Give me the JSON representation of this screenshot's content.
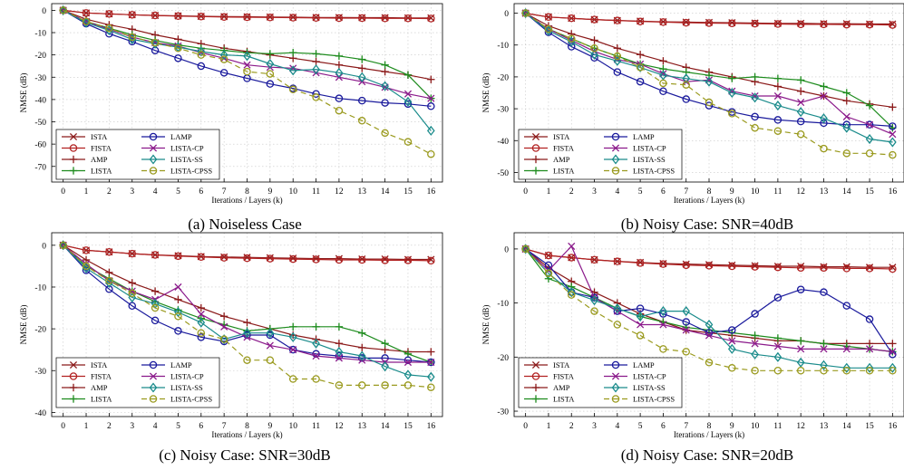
{
  "chart_data": [
    {
      "type": "line",
      "caption": "(a) Noiseless Case",
      "xlabel": "Iterations / Layers (k)",
      "ylabel": "NMSE (dB)",
      "xlim": [
        -0.5,
        16.5
      ],
      "ylim": [
        -77,
        3
      ],
      "yticks": [
        0,
        -10,
        -20,
        -30,
        -40,
        -50,
        -60,
        -70
      ],
      "xticks": [
        0,
        1,
        2,
        3,
        4,
        5,
        6,
        7,
        8,
        9,
        10,
        11,
        12,
        13,
        14,
        15,
        16
      ],
      "grid": true,
      "legend_position": "bottom-left",
      "series": [
        {
          "name": "ISTA",
          "color": "#8b1a1a",
          "marker": "x",
          "dash": "",
          "values": [
            0,
            -1.2,
            -1.6,
            -2.0,
            -2.3,
            -2.5,
            -2.7,
            -2.8,
            -2.9,
            -3.0,
            -3.1,
            -3.2,
            -3.2,
            -3.3,
            -3.3,
            -3.4,
            -3.4
          ]
        },
        {
          "name": "FISTA",
          "color": "#b22222",
          "marker": "circle",
          "dash": "",
          "values": [
            0,
            -1.2,
            -1.6,
            -2.0,
            -2.3,
            -2.6,
            -2.8,
            -3.0,
            -3.1,
            -3.2,
            -3.3,
            -3.4,
            -3.5,
            -3.5,
            -3.6,
            -3.6,
            -3.7
          ]
        },
        {
          "name": "AMP",
          "color": "#8b1a1a",
          "marker": "plus",
          "dash": "",
          "values": [
            0,
            -4,
            -6.5,
            -8.5,
            -11,
            -13,
            -15,
            -17,
            -18.5,
            -20,
            -21.5,
            -23,
            -24.5,
            -26,
            -27.5,
            -29,
            -31
          ]
        },
        {
          "name": "LISTA",
          "color": "#1e8c1e",
          "marker": "plus",
          "dash": "",
          "values": [
            0,
            -5,
            -8,
            -11,
            -13.5,
            -15.5,
            -17,
            -18,
            -19,
            -19.5,
            -19,
            -19.5,
            -20.5,
            -22,
            -24.5,
            -29,
            -39.5
          ]
        },
        {
          "name": "LAMP",
          "color": "#1a1a9c",
          "marker": "circle",
          "dash": "",
          "values": [
            0,
            -6,
            -10.5,
            -14,
            -18,
            -21.5,
            -25,
            -28,
            -30.5,
            -33,
            -35,
            -37.5,
            -39.5,
            -40.5,
            -41.5,
            -42,
            -43
          ]
        },
        {
          "name": "LISTA-CP",
          "color": "#8b1a8b",
          "marker": "x",
          "dash": "",
          "values": [
            0,
            -5,
            -8.5,
            -12,
            -14.5,
            -16,
            -19,
            -21.5,
            -24.5,
            -25.5,
            -26,
            -28,
            -30,
            -32,
            -34.5,
            -37.5,
            -39.5
          ]
        },
        {
          "name": "LISTA-SS",
          "color": "#1a8b8b",
          "marker": "diamond",
          "dash": "",
          "values": [
            0,
            -5.5,
            -9,
            -13,
            -15,
            -16.5,
            -18.5,
            -20,
            -20.5,
            -24,
            -27,
            -26.5,
            -28,
            -30,
            -34,
            -41,
            -54
          ]
        },
        {
          "name": "LISTA-CPSS",
          "color": "#9a9a1e",
          "marker": "circle",
          "dash": "6,4",
          "values": [
            0,
            -5,
            -8,
            -12,
            -14.5,
            -17,
            -20,
            -22,
            -27.5,
            -28.5,
            -35.5,
            -39,
            -45,
            -49.5,
            -55,
            -59,
            -64.5
          ]
        }
      ]
    },
    {
      "type": "line",
      "caption": "(b) Noisy Case: SNR=40dB",
      "xlabel": "Iterations / Layers (k)",
      "ylabel": "NMSE (dB)",
      "xlim": [
        -0.5,
        16.5
      ],
      "ylim": [
        -53,
        3
      ],
      "yticks": [
        0,
        -10,
        -20,
        -30,
        -40,
        -50
      ],
      "xticks": [
        0,
        1,
        2,
        3,
        4,
        5,
        6,
        7,
        8,
        9,
        10,
        11,
        12,
        13,
        14,
        15,
        16
      ],
      "grid": true,
      "legend_position": "bottom-left",
      "series": [
        {
          "name": "ISTA",
          "color": "#8b1a1a",
          "marker": "x",
          "dash": "",
          "values": [
            0,
            -1.2,
            -1.6,
            -2.0,
            -2.3,
            -2.5,
            -2.7,
            -2.8,
            -2.9,
            -3.0,
            -3.1,
            -3.2,
            -3.2,
            -3.3,
            -3.3,
            -3.4,
            -3.4
          ]
        },
        {
          "name": "FISTA",
          "color": "#b22222",
          "marker": "circle",
          "dash": "",
          "values": [
            0,
            -1.2,
            -1.6,
            -2.0,
            -2.3,
            -2.6,
            -2.8,
            -3.0,
            -3.1,
            -3.2,
            -3.3,
            -3.4,
            -3.5,
            -3.5,
            -3.6,
            -3.6,
            -3.7
          ]
        },
        {
          "name": "AMP",
          "color": "#8b1a1a",
          "marker": "plus",
          "dash": "",
          "values": [
            0,
            -4,
            -6.5,
            -8.5,
            -11,
            -13,
            -15,
            -17,
            -18.5,
            -20,
            -21.5,
            -23,
            -24.5,
            -26,
            -27.5,
            -28.5,
            -29.5
          ]
        },
        {
          "name": "LISTA",
          "color": "#1e8c1e",
          "marker": "plus",
          "dash": "",
          "values": [
            0,
            -5,
            -8,
            -11,
            -13.5,
            -16,
            -17.5,
            -18.5,
            -19.5,
            -20.5,
            -20,
            -20.5,
            -21,
            -23,
            -25,
            -29,
            -36
          ]
        },
        {
          "name": "LAMP",
          "color": "#1a1a9c",
          "marker": "circle",
          "dash": "",
          "values": [
            0,
            -6,
            -10.5,
            -14,
            -18.5,
            -21.5,
            -24.5,
            -27,
            -29,
            -31,
            -32.5,
            -33.5,
            -34,
            -34.5,
            -35,
            -35,
            -35.5
          ]
        },
        {
          "name": "LISTA-CP",
          "color": "#8b1a8b",
          "marker": "x",
          "dash": "",
          "values": [
            0,
            -5,
            -8.5,
            -12,
            -14.5,
            -16,
            -19,
            -21.5,
            -21,
            -24.5,
            -26,
            -26,
            -28,
            -26,
            -32.5,
            -35,
            -38
          ]
        },
        {
          "name": "LISTA-SS",
          "color": "#1a8b8b",
          "marker": "diamond",
          "dash": "",
          "values": [
            0,
            -5.5,
            -9,
            -13,
            -15,
            -17,
            -19.5,
            -20.5,
            -21.5,
            -25,
            -26.5,
            -29,
            -31,
            -33,
            -36,
            -39.5,
            -40.5
          ]
        },
        {
          "name": "LISTA-CPSS",
          "color": "#9a9a1e",
          "marker": "circle",
          "dash": "6,4",
          "values": [
            0,
            -5,
            -8,
            -11,
            -13.5,
            -17,
            -22,
            -22.5,
            -28,
            -31.5,
            -36,
            -37,
            -38,
            -42.5,
            -44,
            -44,
            -44.5
          ]
        }
      ]
    },
    {
      "type": "line",
      "caption": "(c) Noisy Case: SNR=30dB",
      "xlabel": "Iterations / Layers (k)",
      "ylabel": "NMSE (dB)",
      "xlim": [
        -0.5,
        16.5
      ],
      "ylim": [
        -41,
        3
      ],
      "yticks": [
        0,
        -10,
        -20,
        -30,
        -40
      ],
      "xticks": [
        0,
        1,
        2,
        3,
        4,
        5,
        6,
        7,
        8,
        9,
        10,
        11,
        12,
        13,
        14,
        15,
        16
      ],
      "grid": true,
      "legend_position": "bottom-left",
      "series": [
        {
          "name": "ISTA",
          "color": "#8b1a1a",
          "marker": "x",
          "dash": "",
          "values": [
            0,
            -1.2,
            -1.6,
            -2.0,
            -2.3,
            -2.5,
            -2.7,
            -2.8,
            -2.9,
            -3.0,
            -3.1,
            -3.2,
            -3.2,
            -3.3,
            -3.3,
            -3.4,
            -3.4
          ]
        },
        {
          "name": "FISTA",
          "color": "#b22222",
          "marker": "circle",
          "dash": "",
          "values": [
            0,
            -1.2,
            -1.6,
            -2.0,
            -2.3,
            -2.6,
            -2.8,
            -3.0,
            -3.1,
            -3.2,
            -3.3,
            -3.4,
            -3.5,
            -3.5,
            -3.6,
            -3.6,
            -3.7
          ]
        },
        {
          "name": "AMP",
          "color": "#8b1a1a",
          "marker": "plus",
          "dash": "",
          "values": [
            0,
            -3.5,
            -6.5,
            -9,
            -11,
            -13,
            -15,
            -17,
            -18.5,
            -20,
            -21.5,
            -22.5,
            -23.5,
            -24.5,
            -25,
            -25.5,
            -25.5
          ]
        },
        {
          "name": "LISTA",
          "color": "#1e8c1e",
          "marker": "plus",
          "dash": "",
          "values": [
            0,
            -5,
            -8,
            -11,
            -13.5,
            -15.5,
            -17.5,
            -19,
            -20.5,
            -20,
            -19.5,
            -19.5,
            -19.5,
            -21,
            -23.5,
            -26,
            -28
          ]
        },
        {
          "name": "LAMP",
          "color": "#1a1a9c",
          "marker": "circle",
          "dash": "",
          "values": [
            0,
            -6,
            -10.5,
            -14.5,
            -18,
            -20.5,
            -22,
            -23,
            -21.5,
            -21.5,
            -25,
            -26,
            -26.5,
            -27,
            -27,
            -27.5,
            -28
          ]
        },
        {
          "name": "LISTA-CP",
          "color": "#8b1a8b",
          "marker": "x",
          "dash": "",
          "values": [
            0,
            -4.5,
            -8.5,
            -11,
            -13,
            -10,
            -16.5,
            -19.5,
            -22,
            -24,
            -25,
            -26.5,
            -27,
            -27.5,
            -28,
            -28,
            -28
          ]
        },
        {
          "name": "LISTA-SS",
          "color": "#1a8b8b",
          "marker": "diamond",
          "dash": "",
          "values": [
            0,
            -5.5,
            -9,
            -12.5,
            -14,
            -16,
            -18.5,
            -22.5,
            -21,
            -21,
            -22,
            -23.5,
            -25.5,
            -26.5,
            -29,
            -31,
            -31.5
          ]
        },
        {
          "name": "LISTA-CPSS",
          "color": "#9a9a1e",
          "marker": "circle",
          "dash": "6,4",
          "values": [
            0,
            -5,
            -8.5,
            -11.5,
            -15,
            -17,
            -21,
            -22.5,
            -27.5,
            -27.5,
            -32,
            -32,
            -33.5,
            -33.5,
            -33.5,
            -33.5,
            -34
          ]
        }
      ]
    },
    {
      "type": "line",
      "caption": "(d) Noisy Case: SNR=20dB",
      "xlabel": "Iterations / Layers (k)",
      "ylabel": "NMSE (dB)",
      "xlim": [
        -0.5,
        16.5
      ],
      "ylim": [
        -31,
        3
      ],
      "yticks": [
        0,
        -10,
        -20,
        -30
      ],
      "xticks": [
        0,
        1,
        2,
        3,
        4,
        5,
        6,
        7,
        8,
        9,
        10,
        11,
        12,
        13,
        14,
        15,
        16
      ],
      "grid": true,
      "legend_position": "bottom-left",
      "series": [
        {
          "name": "ISTA",
          "color": "#8b1a1a",
          "marker": "x",
          "dash": "",
          "values": [
            0,
            -1.2,
            -1.6,
            -2.0,
            -2.3,
            -2.5,
            -2.7,
            -2.8,
            -2.9,
            -3.0,
            -3.1,
            -3.2,
            -3.2,
            -3.3,
            -3.3,
            -3.4,
            -3.4
          ]
        },
        {
          "name": "FISTA",
          "color": "#b22222",
          "marker": "circle",
          "dash": "",
          "values": [
            0,
            -1.2,
            -1.6,
            -2.0,
            -2.3,
            -2.6,
            -2.8,
            -3.0,
            -3.1,
            -3.2,
            -3.3,
            -3.4,
            -3.5,
            -3.5,
            -3.6,
            -3.6,
            -3.7
          ]
        },
        {
          "name": "AMP",
          "color": "#8b1a1a",
          "marker": "plus",
          "dash": "",
          "values": [
            0,
            -3.5,
            -6,
            -8,
            -10,
            -12,
            -13.5,
            -15,
            -15.5,
            -16,
            -16.5,
            -17,
            -17,
            -17.5,
            -17.5,
            -17.5,
            -17.5
          ]
        },
        {
          "name": "LISTA",
          "color": "#1e8c1e",
          "marker": "plus",
          "dash": "",
          "values": [
            0,
            -5.5,
            -7,
            -9,
            -11,
            -12.5,
            -13.5,
            -14.5,
            -15,
            -15.5,
            -16,
            -16.5,
            -17,
            -17.5,
            -18,
            -18.5,
            -19
          ]
        },
        {
          "name": "LAMP",
          "color": "#1a1a9c",
          "marker": "circle",
          "dash": "",
          "values": [
            0,
            -3,
            -8,
            -9,
            -11.5,
            -11,
            -12,
            -13.5,
            -15.5,
            -15,
            -12,
            -9,
            -7.5,
            -8,
            -10.5,
            -13,
            -19.5
          ]
        },
        {
          "name": "LISTA-CP",
          "color": "#8b1a8b",
          "marker": "x",
          "dash": "",
          "values": [
            0,
            -4,
            0.5,
            -9,
            -11.5,
            -14,
            -14,
            -15,
            -16,
            -17,
            -17.5,
            -18,
            -18.5,
            -18.5,
            -18.5,
            -18.5,
            -19
          ]
        },
        {
          "name": "LISTA-SS",
          "color": "#1a8b8b",
          "marker": "diamond",
          "dash": "",
          "values": [
            0,
            -4.5,
            -8,
            -9.5,
            -11,
            -12.5,
            -11.5,
            -11.5,
            -14,
            -18.5,
            -19.5,
            -20,
            -21,
            -21.5,
            -22,
            -22,
            -22
          ]
        },
        {
          "name": "LISTA-CPSS",
          "color": "#9a9a1e",
          "marker": "circle",
          "dash": "6,4",
          "values": [
            0,
            -4.5,
            -8.5,
            -11.5,
            -14,
            -16,
            -18.5,
            -19,
            -21,
            -22,
            -22.5,
            -22.5,
            -22.5,
            -22.5,
            -22.5,
            -22.5,
            -22.5
          ]
        }
      ]
    }
  ]
}
